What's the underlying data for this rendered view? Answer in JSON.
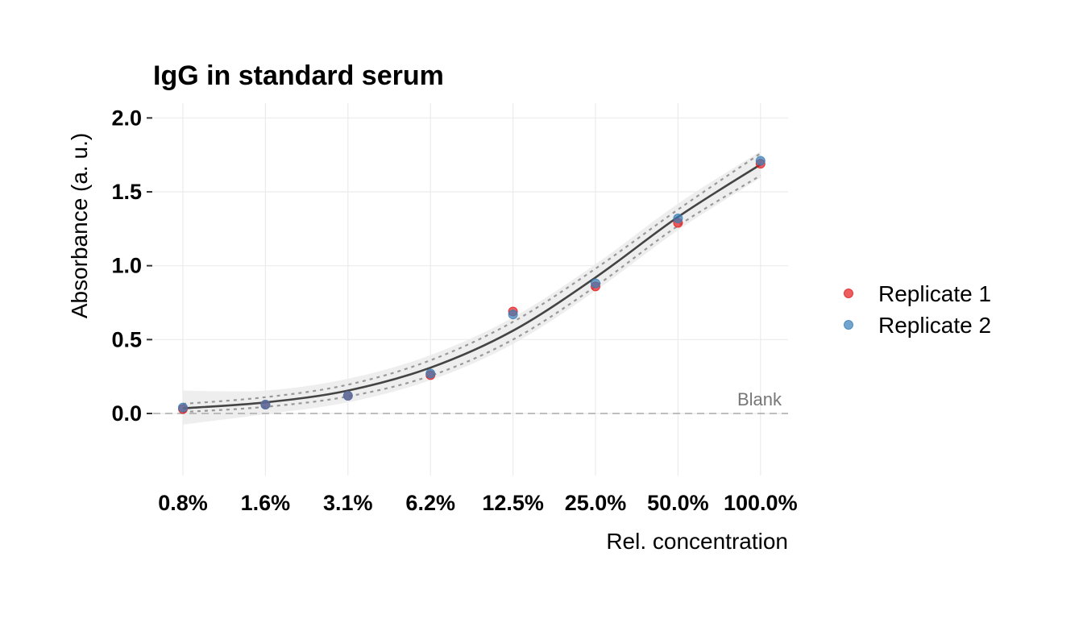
{
  "chart_data": {
    "type": "scatter",
    "title": "IgG in standard serum",
    "xlabel": "Rel. concentration",
    "ylabel": "Absorbance (a. u.)",
    "x_scale": "log2",
    "categories": [
      "0.8%",
      "1.6%",
      "3.1%",
      "6.2%",
      "12.5%",
      "25.0%",
      "50.0%",
      "100.0%"
    ],
    "ylim": [
      -0.42,
      2.1
    ],
    "y_ticks": [
      "0.0",
      "0.5",
      "1.0",
      "1.5",
      "2.0"
    ],
    "grid": true,
    "legend_position": "right",
    "series": [
      {
        "name": "Replicate 1",
        "color": "#E41A1C",
        "values": [
          0.03,
          0.06,
          0.12,
          0.26,
          0.69,
          0.86,
          1.29,
          1.69
        ]
      },
      {
        "name": "Replicate 2",
        "color": "#377EB8",
        "values": [
          0.04,
          0.06,
          0.12,
          0.27,
          0.67,
          0.88,
          1.32,
          1.71
        ]
      }
    ],
    "fit": {
      "color": "#444444",
      "values": [
        0.035,
        0.075,
        0.155,
        0.31,
        0.56,
        0.92,
        1.33,
        1.685
      ]
    },
    "confidence_band": {
      "color": "#EBEBEB",
      "lower": [
        -0.075,
        -0.005,
        0.075,
        0.225,
        0.47,
        0.83,
        1.24,
        1.595
      ],
      "upper": [
        0.155,
        0.155,
        0.235,
        0.395,
        0.65,
        1.01,
        1.42,
        1.775
      ]
    },
    "dotted_bounds": {
      "color": "#999999",
      "lower": [
        0.01,
        0.045,
        0.115,
        0.255,
        0.5,
        0.86,
        1.27,
        1.61
      ],
      "upper": [
        0.065,
        0.11,
        0.195,
        0.36,
        0.62,
        0.98,
        1.38,
        1.76
      ]
    },
    "reference_line": {
      "label": "Blank",
      "y": 0.0,
      "color": "#AAAAAA"
    }
  }
}
